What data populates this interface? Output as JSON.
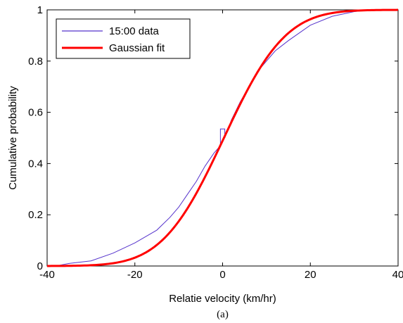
{
  "chart_data": {
    "type": "line",
    "xlabel": "Relatie velocity (km/hr)",
    "ylabel": "Cumulative probability",
    "caption": "(a)",
    "xlim": [
      -40,
      40
    ],
    "ylim": [
      0,
      1
    ],
    "xticks": [
      -40,
      -20,
      0,
      20,
      40
    ],
    "xtick_labels": [
      "-40",
      "-20",
      "0",
      "20",
      "40"
    ],
    "yticks": [
      0,
      0.2,
      0.4,
      0.6,
      0.8,
      1
    ],
    "ytick_labels": [
      "0",
      "0.2",
      "0.4",
      "0.6",
      "0.8",
      "1"
    ],
    "grid": false,
    "legend_position": "top-left",
    "series": [
      {
        "name": "15:00 data",
        "color": "#5533cc",
        "x": [
          -38,
          -35,
          -30,
          -25,
          -20,
          -17,
          -15,
          -12,
          -10,
          -8,
          -6,
          -4,
          -2,
          -0.5,
          -0.5,
          0.5,
          0.5,
          2,
          4,
          6,
          8,
          10,
          12,
          15,
          20,
          25,
          30,
          33
        ],
        "y": [
          0.0,
          0.01,
          0.02,
          0.05,
          0.09,
          0.12,
          0.14,
          0.19,
          0.23,
          0.28,
          0.33,
          0.39,
          0.44,
          0.47,
          0.535,
          0.535,
          0.5,
          0.57,
          0.64,
          0.7,
          0.76,
          0.8,
          0.84,
          0.88,
          0.94,
          0.975,
          0.993,
          1.0
        ]
      },
      {
        "name": "Gaussian fit",
        "color": "#ff0000",
        "mean": 0.3,
        "std": 11.0,
        "x": [
          -40,
          -35,
          -30,
          -25,
          -20,
          -15,
          -10,
          -5,
          0,
          5,
          10,
          15,
          20,
          25,
          30,
          35,
          40
        ],
        "y": [
          0.0001,
          0.0008,
          0.0032,
          0.0115,
          0.0335,
          0.0847,
          0.1815,
          0.3265,
          0.4891,
          0.6502,
          0.7884,
          0.8863,
          0.9453,
          0.9767,
          0.991,
          0.997,
          0.9991
        ]
      }
    ]
  }
}
